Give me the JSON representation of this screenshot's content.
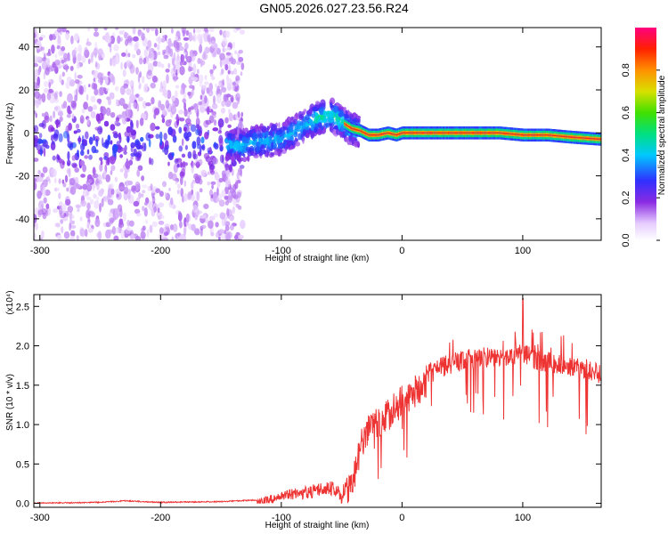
{
  "figure": {
    "title": "GN05.2026.027.23.56.R24"
  },
  "chart_data": [
    {
      "type": "heatmap",
      "name": "spectrogram",
      "xlabel": "Height of straight line (km)",
      "ylabel": "Frequency (Hz)",
      "xlim": [
        -305,
        165
      ],
      "ylim": [
        -50,
        49
      ],
      "xticks": [
        -300,
        -200,
        -100,
        0,
        100
      ],
      "yticks": [
        -40,
        -20,
        0,
        20,
        40
      ],
      "colorbar": {
        "label": "Normalized spectral amplitude",
        "range": [
          0,
          1
        ],
        "ticks": [
          0.0,
          0.2,
          0.4,
          0.6,
          0.8
        ]
      },
      "signal_ridge": {
        "x": [
          -305,
          -280,
          -250,
          -220,
          -190,
          -160,
          -135,
          -120,
          -100,
          -85,
          -70,
          -58,
          -50,
          -42,
          -35,
          -28,
          -20,
          -12,
          -5,
          0,
          20,
          40,
          60,
          80,
          100,
          120,
          140,
          165
        ],
        "freq": [
          -3,
          -5,
          -5,
          -4,
          -5,
          -4,
          -6,
          -4,
          -3,
          2,
          7,
          8,
          5,
          2,
          1,
          -1,
          -1,
          0,
          -1,
          0,
          0,
          0,
          0,
          0,
          -1,
          -1,
          -2,
          -3
        ]
      },
      "noise_region_x": [
        -305,
        -135
      ]
    },
    {
      "type": "line",
      "name": "snr",
      "xlabel": "Height of straight line (km)",
      "ylabel": "SNR (10 * v/v)",
      "y_multiplier": "(x10⁴)",
      "color": "#ee3333",
      "xlim": [
        -305,
        165
      ],
      "ylim": [
        -0.05,
        2.65
      ],
      "xticks": [
        -300,
        -200,
        -100,
        0,
        100
      ],
      "yticks": [
        0.0,
        0.5,
        1.0,
        1.5,
        2.0,
        2.5
      ],
      "envelope": {
        "x": [
          -305,
          -250,
          -230,
          -200,
          -150,
          -120,
          -100,
          -80,
          -60,
          -50,
          -45,
          -40,
          -35,
          -30,
          -25,
          -20,
          -10,
          0,
          10,
          20,
          30,
          50,
          70,
          90,
          100,
          110,
          130,
          150,
          165
        ],
        "y": [
          0.01,
          0.02,
          0.04,
          0.02,
          0.03,
          0.05,
          0.15,
          0.22,
          0.3,
          0.2,
          0.35,
          0.55,
          0.9,
          1.1,
          1.2,
          1.25,
          1.35,
          1.5,
          1.62,
          1.75,
          1.85,
          1.95,
          1.98,
          2.0,
          2.05,
          1.95,
          1.9,
          1.85,
          1.78
        ]
      },
      "peak": {
        "x": 100,
        "y": 2.6
      }
    }
  ]
}
